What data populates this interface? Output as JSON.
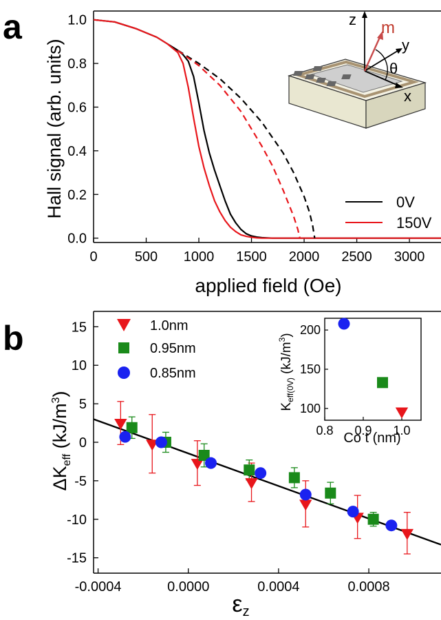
{
  "chart_data": [
    {
      "type": "line",
      "panel_label": "a",
      "xlabel": "applied field (Oe)",
      "ylabel": "Hall signal (arb. units)",
      "xlim": [
        0,
        3300
      ],
      "ylim": [
        -0.02,
        1.04
      ],
      "xticks": [
        "0",
        "500",
        "1000",
        "1500",
        "2000",
        "2500",
        "3000"
      ],
      "yticks": [
        "0.0",
        "0.2",
        "0.4",
        "0.6",
        "0.8",
        "1.0"
      ],
      "legend_position": "bottom-right",
      "series": [
        {
          "name": "0V",
          "color": "#000000",
          "style": "solid",
          "x": [
            0,
            200,
            400,
            600,
            700,
            800,
            850,
            900,
            950,
            1000,
            1050,
            1100,
            1150,
            1200,
            1250,
            1300,
            1350,
            1400,
            1450,
            1500,
            1550,
            1600,
            1700,
            3300
          ],
          "y": [
            1.0,
            0.99,
            0.96,
            0.92,
            0.89,
            0.86,
            0.84,
            0.81,
            0.74,
            0.62,
            0.49,
            0.39,
            0.31,
            0.24,
            0.17,
            0.11,
            0.07,
            0.04,
            0.02,
            0.01,
            0.005,
            0.002,
            0.0,
            0.0
          ]
        },
        {
          "name": "150V",
          "color": "#e8161b",
          "style": "solid",
          "x": [
            0,
            200,
            400,
            600,
            700,
            750,
            800,
            850,
            900,
            950,
            1000,
            1050,
            1100,
            1150,
            1200,
            1250,
            1300,
            1350,
            1400,
            1450,
            1500,
            1550,
            1600,
            3300
          ],
          "y": [
            1.0,
            0.99,
            0.96,
            0.92,
            0.89,
            0.87,
            0.85,
            0.8,
            0.69,
            0.55,
            0.42,
            0.32,
            0.24,
            0.17,
            0.12,
            0.08,
            0.05,
            0.03,
            0.015,
            0.008,
            0.004,
            0.001,
            0.0,
            0.0
          ]
        },
        {
          "name": "",
          "color": "#000000",
          "style": "dashed",
          "x": [
            800,
            1000,
            1200,
            1400,
            1600,
            1800,
            1900,
            2000,
            2050,
            2080,
            2100
          ],
          "y": [
            0.86,
            0.8,
            0.73,
            0.64,
            0.53,
            0.39,
            0.3,
            0.19,
            0.12,
            0.06,
            0.0
          ]
        },
        {
          "name": "",
          "color": "#e8161b",
          "style": "dashed",
          "x": [
            800,
            1000,
            1200,
            1400,
            1600,
            1700,
            1800,
            1850,
            1900,
            1940,
            1960
          ],
          "y": [
            0.86,
            0.79,
            0.7,
            0.58,
            0.42,
            0.33,
            0.22,
            0.16,
            0.1,
            0.04,
            0.0
          ]
        }
      ],
      "inset_labels": {
        "z": "z",
        "y": "y",
        "x": "x",
        "m": "m",
        "theta": "θ"
      }
    },
    {
      "type": "scatter",
      "panel_label": "b",
      "xlabel": "εz",
      "ylabel": "ΔKeff (kJ/m3)",
      "xlim": [
        -0.00042,
        0.00112
      ],
      "ylim": [
        -17,
        17
      ],
      "xticks": [
        "-0.0004",
        "0.0000",
        "0.0004",
        "0.0008"
      ],
      "yticks": [
        "15",
        "10",
        "5",
        "0",
        "-5",
        "-10",
        "-15"
      ],
      "legend_position": "top-left",
      "fit_line": {
        "x": [
          -0.00042,
          0.00112
        ],
        "y": [
          3.0,
          -13.3
        ]
      },
      "series": [
        {
          "name": "1.0nm",
          "color": "#e8161b",
          "marker": "triangle-down",
          "x": [
            -0.0003,
            -0.00016,
            4e-05,
            0.00028,
            0.00052,
            0.00075,
            0.00097
          ],
          "y": [
            2.5,
            -0.2,
            -2.7,
            -5.2,
            -8.0,
            -9.7,
            -11.8
          ],
          "err": [
            2.8,
            3.8,
            2.9,
            2.5,
            3.0,
            2.8,
            2.7
          ]
        },
        {
          "name": "0.95nm",
          "color": "#1a8a1a",
          "marker": "square",
          "x": [
            -0.00025,
            -0.0001,
            7e-05,
            0.00027,
            0.00047,
            0.00063,
            0.00082
          ],
          "y": [
            1.9,
            0.0,
            -1.7,
            -3.6,
            -4.6,
            -6.6,
            -10.0
          ],
          "err": [
            1.4,
            1.3,
            1.5,
            1.3,
            1.3,
            1.4,
            0.9
          ]
        },
        {
          "name": "0.85nm",
          "color": "#1a22f0",
          "marker": "circle",
          "x": [
            -0.00028,
            -0.00012,
            0.0001,
            0.00032,
            0.00052,
            0.00073,
            0.0009
          ],
          "y": [
            0.7,
            0.0,
            -2.7,
            -4.0,
            -6.8,
            -9.0,
            -10.8
          ],
          "err": [
            0,
            0,
            0,
            0,
            0,
            0,
            0
          ]
        }
      ],
      "inset": {
        "xlabel": "Co t (nm)",
        "ylabel": "Keff(0V) (kJ/m3)",
        "xlim": [
          0.8,
          1.05
        ],
        "ylim": [
          85,
          215
        ],
        "xticks": [
          "0.8",
          "0.9",
          "1.0"
        ],
        "yticks": [
          "200",
          "150",
          "100"
        ],
        "points": [
          {
            "x": 0.85,
            "y": 208,
            "color": "#1a22f0",
            "marker": "circle"
          },
          {
            "x": 0.95,
            "y": 133,
            "color": "#1a8a1a",
            "marker": "square"
          },
          {
            "x": 1.0,
            "y": 96,
            "color": "#e8161b",
            "marker": "triangle-down"
          }
        ]
      }
    }
  ]
}
